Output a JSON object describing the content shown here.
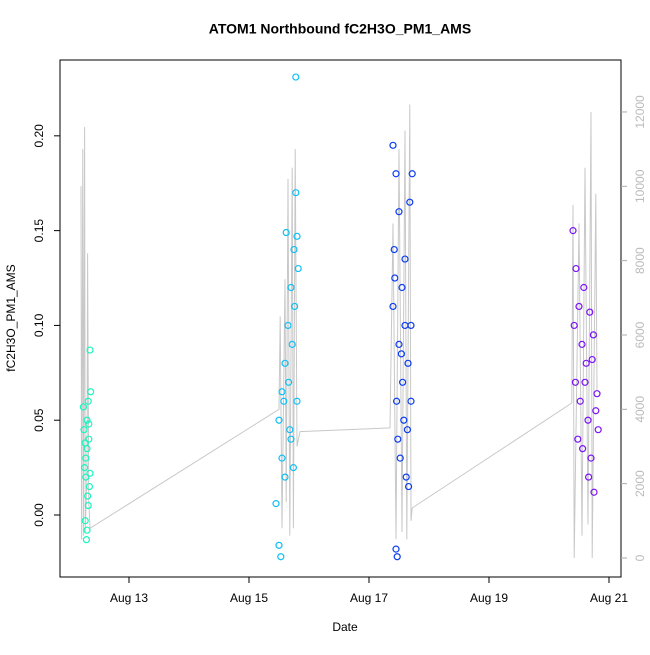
{
  "chart_data": {
    "type": "scatter",
    "title": "ATOM1 Northbound fC2H3O_PM1_AMS",
    "x_label": "Date",
    "y_label": "fC2H3O_PM1_AMS",
    "xlim": [
      11.85,
      21.2
    ],
    "xticks": [
      {
        "value": 13,
        "label": "Aug 13"
      },
      {
        "value": 15,
        "label": "Aug 15"
      },
      {
        "value": 17,
        "label": "Aug 17"
      },
      {
        "value": 19,
        "label": "Aug 19"
      },
      {
        "value": 21,
        "label": "Aug 21"
      }
    ],
    "ylim": [
      -0.0327,
      0.24
    ],
    "yticks": [
      {
        "value": 0,
        "label": "0.00"
      },
      0.05,
      {
        "value": 0.1,
        "label": "0.10"
      },
      0.15,
      {
        "value": 0.2,
        "label": "0.20"
      }
    ],
    "y2lim": [
      -511,
      13398
    ],
    "y2ticks": [
      0,
      2000,
      4000,
      6000,
      8000,
      10000,
      12000
    ],
    "series": [
      {
        "color": "#19f5bf",
        "x": [
          12.28,
          12.3,
          12.25,
          12.32,
          12.35,
          12.27,
          12.29,
          12.31,
          12.26,
          12.33,
          12.3,
          12.34,
          12.28,
          12.36,
          12.24,
          12.32,
          12.3,
          12.27,
          12.35,
          12.33
        ],
        "values": [
          0.02,
          0.035,
          0.045,
          0.06,
          0.087,
          -0.003,
          -0.013,
          0.01,
          0.025,
          0.04,
          0.05,
          0.015,
          0.03,
          0.065,
          0.057,
          0.005,
          -0.008,
          0.038,
          0.022,
          0.048
        ]
      },
      {
        "color": "#10bff5",
        "x": [
          15.5,
          15.55,
          15.6,
          15.65,
          15.7,
          15.75,
          15.8,
          15.62,
          15.78,
          15.78,
          15.45,
          15.5,
          15.53,
          15.58,
          15.68,
          15.72,
          15.76,
          15.82,
          15.6,
          15.66,
          15.74,
          15.8,
          15.55,
          15.7
        ],
        "values": [
          0.05,
          0.03,
          0.08,
          0.1,
          0.12,
          0.14,
          0.147,
          0.149,
          0.231,
          0.17,
          0.006,
          -0.016,
          -0.022,
          0.06,
          0.045,
          0.09,
          0.11,
          0.13,
          0.02,
          0.07,
          0.025,
          0.06,
          0.065,
          0.04
        ]
      },
      {
        "color": "#0a3cf0",
        "x": [
          17.4,
          17.45,
          17.5,
          17.42,
          17.55,
          17.6,
          17.65,
          17.7,
          17.48,
          17.52,
          17.58,
          17.45,
          17.47,
          17.62,
          17.72,
          17.68,
          17.4,
          17.5,
          17.56,
          17.64,
          17.43,
          17.6,
          17.7,
          17.66,
          17.54,
          17.46
        ],
        "values": [
          0.195,
          0.18,
          0.16,
          0.14,
          0.12,
          0.1,
          0.08,
          0.06,
          0.04,
          0.03,
          0.05,
          -0.018,
          -0.022,
          0.02,
          0.18,
          0.165,
          0.11,
          0.09,
          0.07,
          0.045,
          0.125,
          0.135,
          0.1,
          0.015,
          0.085,
          0.06
        ]
      },
      {
        "color": "#7a14f5",
        "x": [
          20.4,
          20.45,
          20.5,
          20.55,
          20.6,
          20.65,
          20.7,
          20.75,
          20.8,
          20.68,
          20.72,
          20.42,
          20.48,
          20.52,
          20.58,
          20.62,
          20.78,
          20.66,
          20.44,
          20.56,
          20.74,
          20.82
        ],
        "values": [
          0.15,
          0.13,
          0.11,
          0.09,
          0.07,
          0.05,
          0.03,
          0.012,
          0.064,
          0.107,
          0.082,
          0.1,
          0.04,
          0.06,
          0.12,
          0.08,
          0.055,
          0.02,
          0.07,
          0.035,
          0.095,
          0.045
        ]
      },
      {
        "type": "line",
        "axis": "y2",
        "color": "#c8c8c8",
        "x": [
          12.2,
          12.21,
          12.23,
          12.24,
          12.26,
          12.27,
          12.3,
          12.31,
          12.33,
          12.35,
          15.5,
          15.52,
          15.55,
          15.6,
          15.62,
          15.65,
          15.68,
          15.72,
          15.74,
          15.77,
          15.8,
          15.85,
          17.35,
          17.4,
          17.45,
          17.5,
          17.55,
          17.6,
          17.63,
          17.68,
          17.7,
          17.72,
          20.38,
          20.4,
          20.42,
          20.5,
          20.55,
          20.6,
          20.65,
          20.7,
          20.72,
          20.78,
          20.8
        ],
        "values": [
          10000,
          500,
          11000,
          600,
          11600,
          700,
          2200,
          8200,
          1500,
          800,
          4000,
          6500,
          800,
          7500,
          1500,
          10200,
          600,
          10500,
          800,
          11000,
          3000,
          3400,
          3500,
          9000,
          500,
          11000,
          700,
          11500,
          500,
          12200,
          1000,
          1345,
          4170,
          9500,
          0,
          9000,
          600,
          10500,
          900,
          12000,
          0,
          9800,
          4500
        ]
      }
    ]
  }
}
